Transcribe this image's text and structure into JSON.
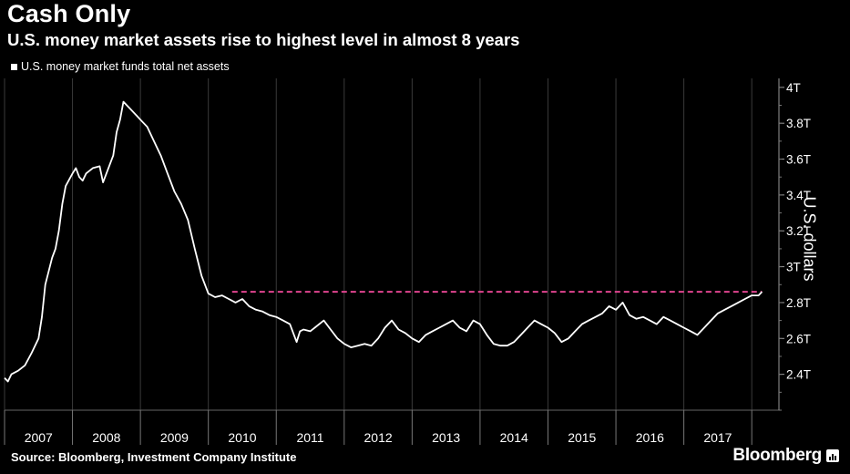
{
  "title": "Cash Only",
  "subtitle": "U.S. money market assets rise to highest level in almost 8 years",
  "legend_label": "U.S. money market funds total net assets",
  "ylabel": "U.S. dollars",
  "source": "Source: Bloomberg, Investment Company Institute",
  "brand": "Bloomberg",
  "colors": {
    "background": "#000000",
    "series": "#ffffff",
    "reference_line": "#e0448f",
    "grid": "#3a3a3a"
  },
  "chart_data": {
    "type": "line",
    "title": "U.S. money market assets rise to highest level in almost 8 years",
    "ylabel": "U.S. dollars",
    "x_unit": "year",
    "xlim": [
      2007.0,
      2018.4
    ],
    "ylim": [
      2.2,
      4.05
    ],
    "y_ticks": [
      2.4,
      2.6,
      2.8,
      3.0,
      3.2,
      3.4,
      3.6,
      3.8,
      4.0
    ],
    "y_tick_labels": [
      "2.4T",
      "2.6T",
      "2.8T",
      "3T",
      "3.2T",
      "3.4T",
      "3.6T",
      "3.8T",
      "4T"
    ],
    "x_categories": [
      "2007",
      "2008",
      "2009",
      "2010",
      "2011",
      "2012",
      "2013",
      "2014",
      "2015",
      "2016",
      "2017"
    ],
    "legend_position": "top-left",
    "grid": "vertical",
    "series": [
      {
        "name": "U.S. money market funds total net assets",
        "x": [
          2007.0,
          2007.05,
          2007.1,
          2007.2,
          2007.3,
          2007.4,
          2007.5,
          2007.55,
          2007.6,
          2007.7,
          2007.75,
          2007.8,
          2007.85,
          2007.9,
          2008.0,
          2008.05,
          2008.1,
          2008.15,
          2008.2,
          2008.3,
          2008.4,
          2008.45,
          2008.5,
          2008.6,
          2008.65,
          2008.7,
          2008.75,
          2008.8,
          2008.85,
          2008.9,
          2008.95,
          2009.0,
          2009.1,
          2009.2,
          2009.3,
          2009.4,
          2009.5,
          2009.6,
          2009.7,
          2009.8,
          2009.9,
          2010.0,
          2010.1,
          2010.2,
          2010.3,
          2010.4,
          2010.5,
          2010.6,
          2010.7,
          2010.8,
          2010.9,
          2011.0,
          2011.1,
          2011.2,
          2011.3,
          2011.35,
          2011.4,
          2011.5,
          2011.6,
          2011.7,
          2011.8,
          2011.9,
          2012.0,
          2012.1,
          2012.2,
          2012.3,
          2012.4,
          2012.5,
          2012.6,
          2012.7,
          2012.8,
          2012.9,
          2013.0,
          2013.1,
          2013.2,
          2013.3,
          2013.4,
          2013.5,
          2013.6,
          2013.7,
          2013.8,
          2013.9,
          2014.0,
          2014.1,
          2014.2,
          2014.3,
          2014.4,
          2014.5,
          2014.6,
          2014.7,
          2014.8,
          2014.9,
          2015.0,
          2015.1,
          2015.2,
          2015.3,
          2015.4,
          2015.5,
          2015.6,
          2015.7,
          2015.8,
          2015.9,
          2016.0,
          2016.1,
          2016.2,
          2016.3,
          2016.4,
          2016.5,
          2016.6,
          2016.7,
          2016.8,
          2016.9,
          2017.0,
          2017.1,
          2017.2,
          2017.3,
          2017.4,
          2017.5,
          2017.6,
          2017.7,
          2017.8,
          2017.9,
          2018.0,
          2018.1,
          2018.15
        ],
        "values": [
          2.38,
          2.36,
          2.4,
          2.42,
          2.45,
          2.52,
          2.6,
          2.72,
          2.9,
          3.05,
          3.1,
          3.2,
          3.35,
          3.45,
          3.52,
          3.55,
          3.5,
          3.48,
          3.52,
          3.55,
          3.56,
          3.47,
          3.52,
          3.62,
          3.75,
          3.82,
          3.92,
          3.9,
          3.88,
          3.86,
          3.84,
          3.82,
          3.78,
          3.7,
          3.62,
          3.52,
          3.42,
          3.35,
          3.26,
          3.1,
          2.95,
          2.85,
          2.83,
          2.84,
          2.82,
          2.8,
          2.82,
          2.78,
          2.76,
          2.75,
          2.73,
          2.72,
          2.7,
          2.68,
          2.58,
          2.64,
          2.65,
          2.64,
          2.67,
          2.7,
          2.65,
          2.6,
          2.57,
          2.55,
          2.56,
          2.57,
          2.56,
          2.6,
          2.66,
          2.7,
          2.65,
          2.63,
          2.6,
          2.58,
          2.62,
          2.64,
          2.66,
          2.68,
          2.7,
          2.66,
          2.64,
          2.7,
          2.68,
          2.62,
          2.57,
          2.56,
          2.56,
          2.58,
          2.62,
          2.66,
          2.7,
          2.68,
          2.66,
          2.63,
          2.58,
          2.6,
          2.64,
          2.68,
          2.7,
          2.72,
          2.74,
          2.78,
          2.76,
          2.8,
          2.73,
          2.71,
          2.72,
          2.7,
          2.68,
          2.72,
          2.7,
          2.68,
          2.66,
          2.64,
          2.62,
          2.66,
          2.7,
          2.74,
          2.76,
          2.78,
          2.8,
          2.82,
          2.84,
          2.84,
          2.86
        ]
      }
    ],
    "reference_line": {
      "y": 2.86,
      "x_start": 2010.35,
      "x_end": 2018.15,
      "style": "dashed"
    }
  }
}
